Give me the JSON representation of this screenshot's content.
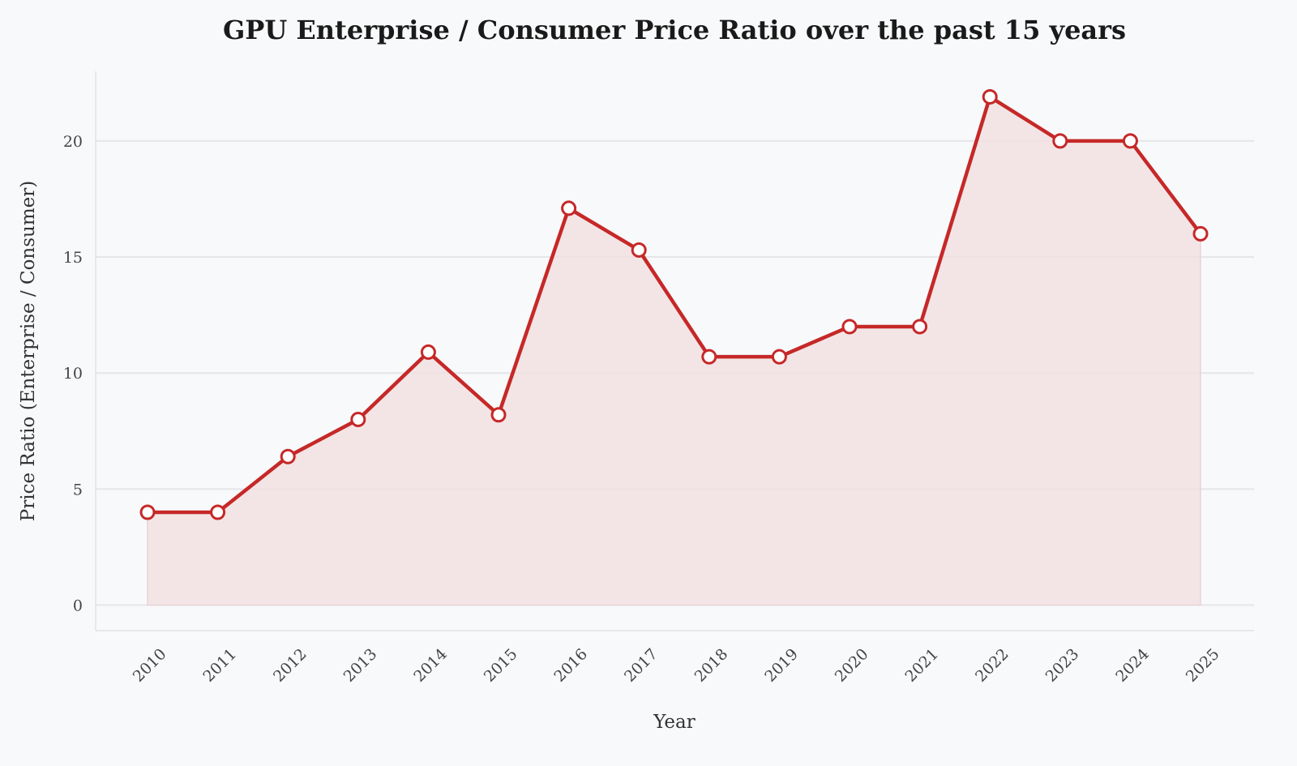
{
  "chart_data": {
    "type": "line",
    "title": "GPU Enterprise / Consumer Price Ratio over the past 15 years",
    "xlabel": "Year",
    "ylabel": "Price Ratio (Enterprise / Consumer)",
    "categories": [
      "2010",
      "2011",
      "2012",
      "2013",
      "2014",
      "2015",
      "2016",
      "2017",
      "2018",
      "2019",
      "2020",
      "2021",
      "2022",
      "2023",
      "2024",
      "2025"
    ],
    "values": [
      4.0,
      4.0,
      6.4,
      8.0,
      10.9,
      8.2,
      17.1,
      15.3,
      10.7,
      10.7,
      12.0,
      12.0,
      21.9,
      20.0,
      20.0,
      16.0
    ],
    "yticks": [
      0,
      5,
      10,
      15,
      20
    ],
    "ylim": [
      -1.1,
      23
    ],
    "grid": "horizontal",
    "area_fill": true,
    "colors": {
      "line": "#c62828",
      "fill": "#f2dede",
      "marker_fill": "#ffffff",
      "grid": "#e6e6ea",
      "background": "#f8f9fb"
    }
  }
}
